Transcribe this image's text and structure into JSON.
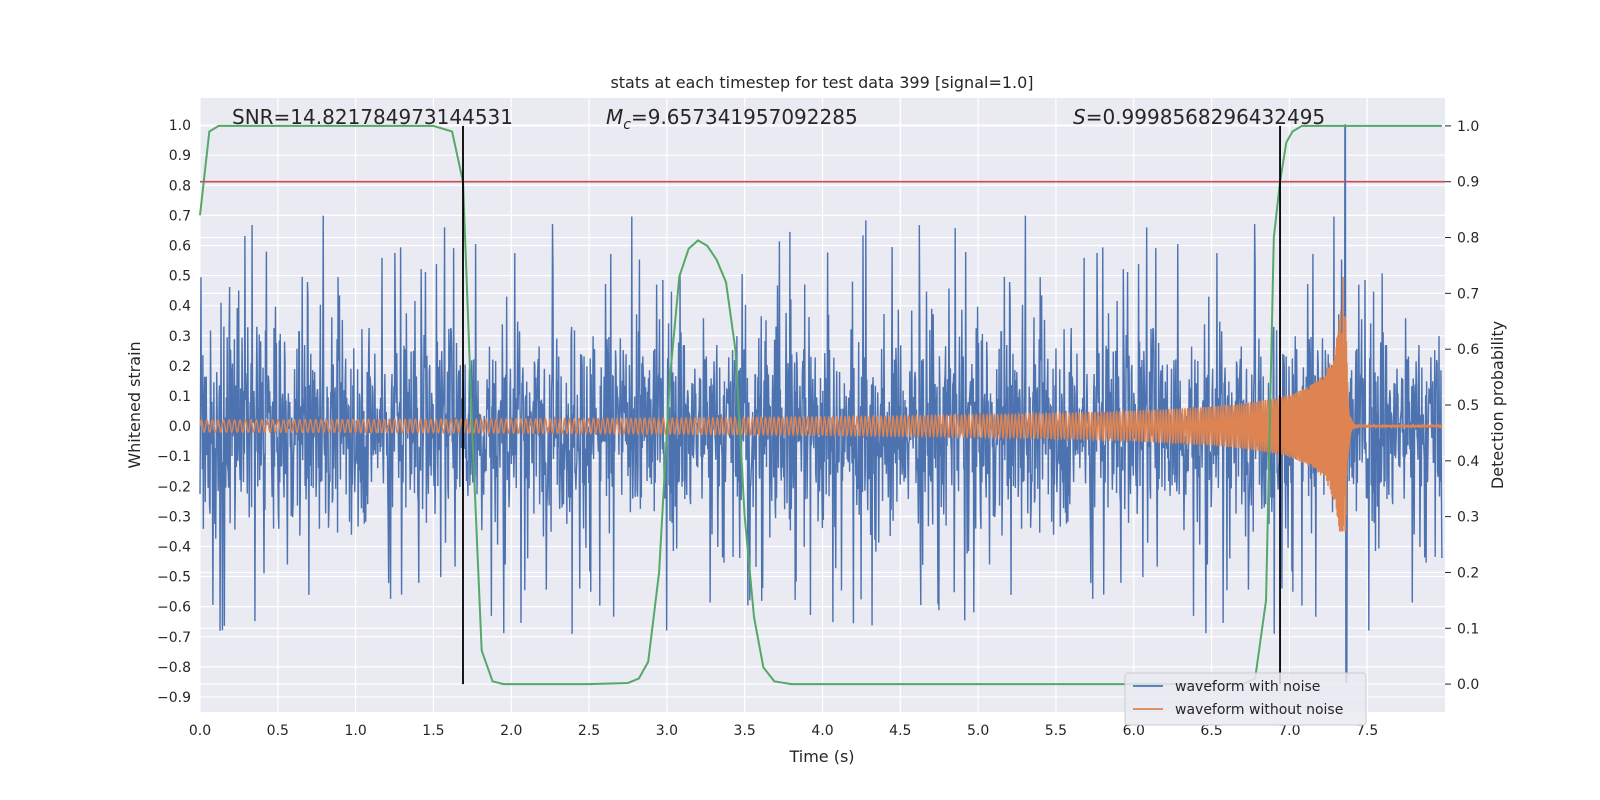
{
  "chart_data": {
    "type": "line",
    "title": "stats at each timestep for test data 399 [signal=1.0]",
    "xlabel": "Time (s)",
    "ylabel_left": "Whitened strain",
    "ylabel_right": "Detection probability",
    "xlim": [
      0.0,
      8.0
    ],
    "ylim_left": [
      -0.95,
      1.09
    ],
    "ylim_right": [
      -0.05,
      1.05
    ],
    "x_ticks": [
      "0.0",
      "0.5",
      "1.0",
      "1.5",
      "2.0",
      "2.5",
      "3.0",
      "3.5",
      "4.0",
      "4.5",
      "5.0",
      "5.5",
      "6.0",
      "6.5",
      "7.0",
      "7.5"
    ],
    "y_left_ticks": [
      "-0.9",
      "-0.8",
      "-0.7",
      "-0.6",
      "-0.5",
      "-0.4",
      "-0.3",
      "-0.2",
      "-0.1",
      "0.0",
      "0.1",
      "0.2",
      "0.3",
      "0.4",
      "0.5",
      "0.6",
      "0.7",
      "0.8",
      "0.9",
      "1.0"
    ],
    "y_right_ticks": [
      "0.0",
      "0.1",
      "0.2",
      "0.3",
      "0.4",
      "0.5",
      "0.6",
      "0.7",
      "0.8",
      "0.9",
      "1.0"
    ],
    "grid": true,
    "legend_position": "lower-right",
    "annotations": {
      "snr_label": "SNR=14.821784973144531",
      "mc_symbol": "M",
      "mc_subscript": "c",
      "mc_value": "=9.657341957092285",
      "s_symbol": "S",
      "s_value": "=0.9998568296432495"
    },
    "threshold_probability": 0.9,
    "vertical_markers_time": [
      1.69,
      6.94
    ],
    "series": [
      {
        "name": "waveform with noise",
        "color": "#4c72b0",
        "axis": "left",
        "description_values": {
          "typical_amplitude": 0.4,
          "peak_max": 1.0,
          "peak_min": -0.85
        }
      },
      {
        "name": "waveform without noise",
        "color": "#dd8452",
        "axis": "left",
        "chirp": {
          "start_amplitude": 0.02,
          "peak_time": 7.36,
          "peak_max": 0.51,
          "peak_min": -0.35
        }
      },
      {
        "color": "#55a868",
        "axis": "right",
        "x": [
          0.0,
          0.06,
          0.12,
          0.2,
          0.4,
          0.8,
          1.2,
          1.5,
          1.62,
          1.69,
          1.75,
          1.81,
          1.88,
          1.95,
          2.05,
          2.5,
          2.75,
          2.82,
          2.88,
          2.95,
          3.02,
          3.08,
          3.14,
          3.2,
          3.26,
          3.32,
          3.38,
          3.44,
          3.5,
          3.56,
          3.62,
          3.69,
          3.8,
          4.5,
          5.5,
          6.5,
          6.7,
          6.78,
          6.85,
          6.9,
          6.94,
          6.98,
          7.02,
          7.08,
          7.14,
          7.2,
          7.5,
          7.98
        ],
        "values": [
          0.84,
          0.99,
          1.0,
          1.0,
          1.0,
          1.0,
          1.0,
          1.0,
          0.99,
          0.9,
          0.45,
          0.06,
          0.005,
          0.0,
          0.0,
          0.0,
          0.002,
          0.01,
          0.04,
          0.2,
          0.55,
          0.73,
          0.78,
          0.795,
          0.785,
          0.76,
          0.72,
          0.6,
          0.3,
          0.12,
          0.03,
          0.005,
          0.0,
          0.0,
          0.0,
          0.0,
          0.0,
          0.01,
          0.15,
          0.8,
          0.9,
          0.97,
          0.99,
          1.0,
          1.0,
          1.0,
          1.0,
          1.0
        ]
      }
    ]
  }
}
